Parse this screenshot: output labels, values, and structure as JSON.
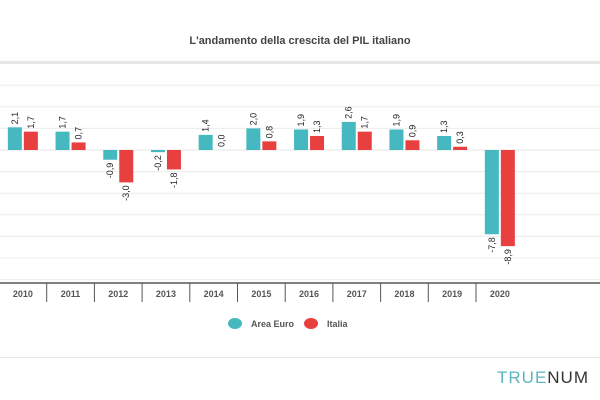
{
  "chart_data": {
    "type": "bar",
    "title": "L'andamento della crescita del PIL italiano",
    "categories": [
      "2010",
      "2011",
      "2012",
      "2013",
      "2014",
      "2015",
      "2016",
      "2017",
      "2018",
      "2019",
      "2020"
    ],
    "series": [
      {
        "name": "Area Euro",
        "color": "#45b8c0",
        "values": [
          2.1,
          1.7,
          -0.9,
          -0.2,
          1.4,
          2.0,
          1.9,
          2.6,
          1.9,
          1.3,
          -7.8
        ],
        "labels": [
          "2,1",
          "1,7",
          "-0,9",
          "-0,2",
          "1,4",
          "2,0",
          "1,9",
          "2,6",
          "1,9",
          "1,3",
          "-7,8"
        ]
      },
      {
        "name": "Italia",
        "color": "#e8403f",
        "values": [
          1.7,
          0.7,
          -3.0,
          -1.8,
          0.0,
          0.8,
          1.3,
          1.7,
          0.9,
          0.3,
          -8.9
        ],
        "labels": [
          "1,7",
          "0,7",
          "-3,0",
          "-1,8",
          "0,0",
          "0,8",
          "1,3",
          "1,7",
          "0,9",
          "0,3",
          "-8,9"
        ]
      }
    ],
    "ylim": [
      -12,
      6
    ],
    "grid": true,
    "legend_position": "bottom"
  },
  "logo": {
    "part1": "TRUE",
    "part2": "NUM"
  }
}
